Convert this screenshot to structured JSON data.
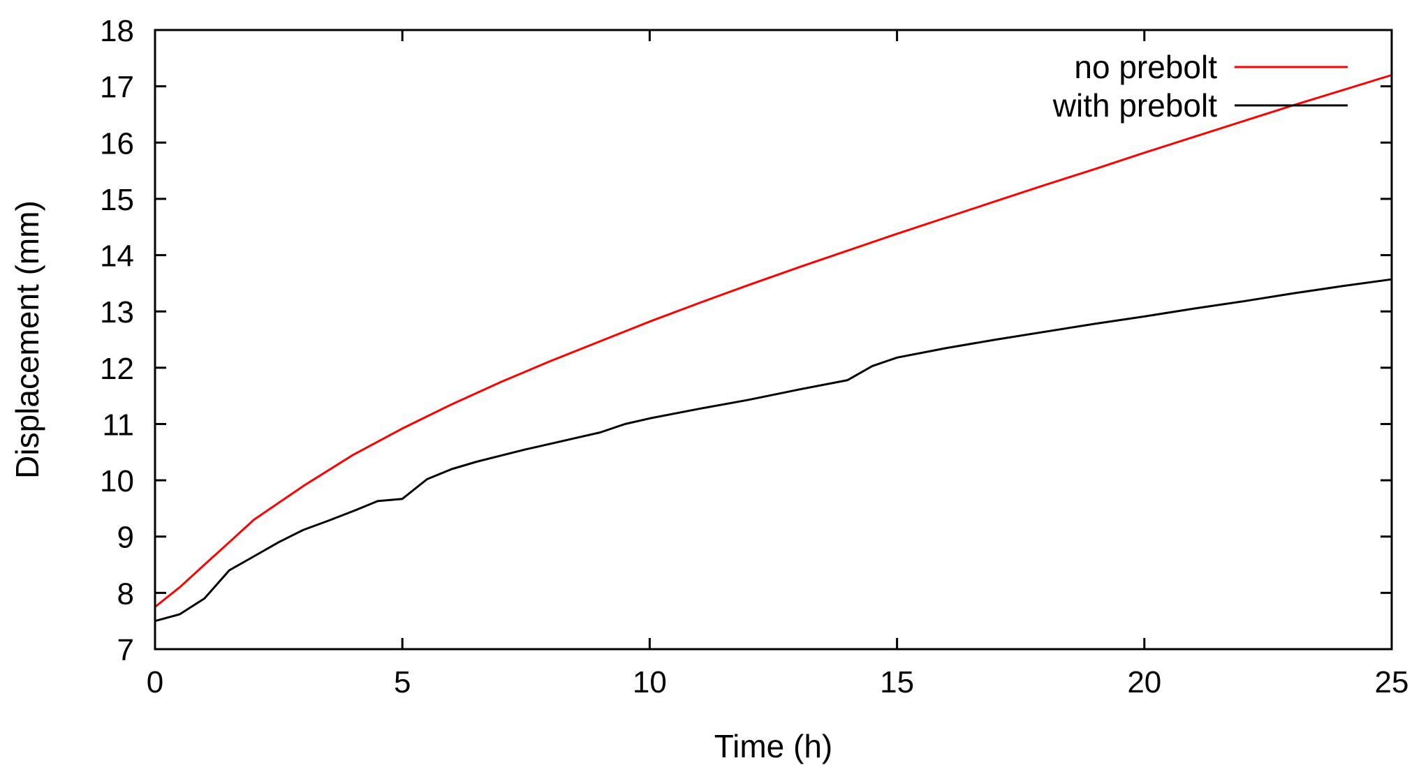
{
  "chart_data": {
    "type": "line",
    "title": "",
    "xlabel": "Time (h)",
    "ylabel": "Displacement (mm)",
    "xlim": [
      0,
      25
    ],
    "ylim": [
      7,
      18
    ],
    "xticks": [
      "0",
      "5",
      "10",
      "15",
      "20",
      "25"
    ],
    "yticks": [
      "7",
      "8",
      "9",
      "10",
      "11",
      "12",
      "13",
      "14",
      "15",
      "16",
      "17",
      "18"
    ],
    "grid": false,
    "legend_position": "top-right",
    "series": [
      {
        "name": "no prebolt",
        "color": "#ff0000",
        "x": [
          0,
          0.5,
          1,
          1.5,
          2,
          3,
          4,
          5,
          6,
          7,
          8,
          9,
          10,
          11,
          12,
          13,
          14,
          15,
          16,
          17,
          18,
          19,
          20,
          21,
          22,
          23,
          24,
          25
        ],
        "y": [
          7.75,
          8.1,
          8.5,
          8.9,
          9.3,
          9.9,
          10.45,
          10.92,
          11.35,
          11.75,
          12.12,
          12.47,
          12.82,
          13.15,
          13.47,
          13.78,
          14.08,
          14.38,
          14.67,
          14.96,
          15.25,
          15.53,
          15.82,
          16.1,
          16.38,
          16.66,
          16.93,
          17.2
        ]
      },
      {
        "name": "with prebolt",
        "color": "#000000",
        "x": [
          0,
          0.5,
          1,
          1.5,
          2,
          2.5,
          3,
          3.5,
          4,
          4.5,
          5,
          5.5,
          6,
          6.5,
          7,
          7.5,
          8,
          8.5,
          9,
          9.5,
          10,
          11,
          12,
          13,
          14,
          14.5,
          15,
          16,
          17,
          18,
          19,
          20,
          21,
          22,
          23,
          24,
          25
        ],
        "y": [
          7.5,
          7.62,
          7.9,
          8.4,
          8.65,
          8.9,
          9.12,
          9.28,
          9.45,
          9.63,
          9.67,
          10.02,
          10.2,
          10.33,
          10.44,
          10.55,
          10.65,
          10.75,
          10.85,
          11.0,
          11.1,
          11.27,
          11.43,
          11.61,
          11.78,
          12.03,
          12.18,
          12.35,
          12.5,
          12.64,
          12.78,
          12.91,
          13.05,
          13.18,
          13.32,
          13.45,
          13.57
        ]
      }
    ]
  }
}
